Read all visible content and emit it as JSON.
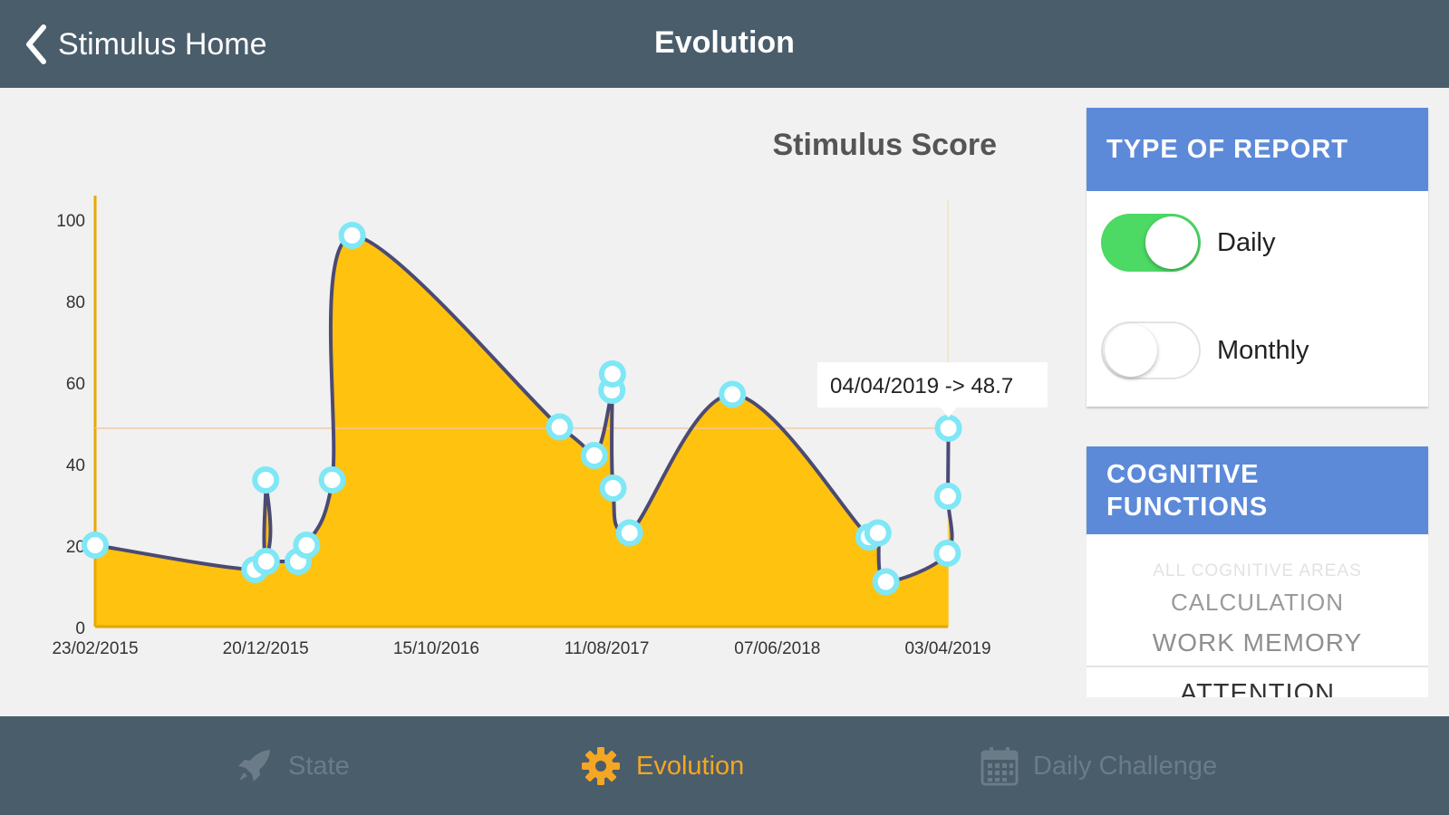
{
  "header": {
    "back_label": "Stimulus Home",
    "title": "Evolution"
  },
  "report_panel": {
    "title": "TYPE OF REPORT",
    "options": [
      {
        "label": "Daily",
        "on": true
      },
      {
        "label": "Monthly",
        "on": false
      }
    ]
  },
  "cognitive_panel": {
    "title_line1": "COGNITIVE",
    "title_line2": "FUNCTIONS",
    "options": [
      "ALL COGNITIVE AREAS",
      "CALCULATION",
      "WORK MEMORY",
      "ATTENTION"
    ],
    "selected": "ATTENTION"
  },
  "tabs": [
    {
      "label": "State",
      "icon": "rocket-icon",
      "active": false
    },
    {
      "label": "Evolution",
      "icon": "gear-icon",
      "active": true
    },
    {
      "label": "Daily Challenge",
      "icon": "calendar-icon",
      "active": false
    }
  ],
  "colors": {
    "header_bg": "#4a5d6b",
    "panel_header": "#5d8ad8",
    "toggle_on": "#4cd964",
    "area_fill": "#ffc20e",
    "line": "#4b4a74",
    "point": "#7fe7f5",
    "active_tab": "#f5a623"
  },
  "chart_data": {
    "type": "area",
    "title": "Stimulus Score",
    "xlabel": "",
    "ylabel": "",
    "ylim": [
      0,
      100
    ],
    "yticks": [
      "0",
      "20",
      "40",
      "60",
      "80",
      "100"
    ],
    "xticks": [
      "23/02/2015",
      "20/12/2015",
      "15/10/2016",
      "11/08/2017",
      "07/06/2018",
      "03/04/2019"
    ],
    "tooltip": "04/04/2019 -> 48.7",
    "reference_line": 48.7,
    "series": [
      {
        "values": [
          {
            "x": "2015-02-23",
            "y": 20
          },
          {
            "x": "2015-12-01",
            "y": 14
          },
          {
            "x": "2015-12-20",
            "y": 36
          },
          {
            "x": "2015-12-21",
            "y": 16
          },
          {
            "x": "2016-02-15",
            "y": 16
          },
          {
            "x": "2016-03-01",
            "y": 20
          },
          {
            "x": "2016-04-15",
            "y": 36
          },
          {
            "x": "2016-05-20",
            "y": 96
          },
          {
            "x": "2017-05-20",
            "y": 49
          },
          {
            "x": "2017-07-20",
            "y": 42
          },
          {
            "x": "2017-08-20",
            "y": 58
          },
          {
            "x": "2017-08-21",
            "y": 62
          },
          {
            "x": "2017-08-22",
            "y": 34
          },
          {
            "x": "2017-09-20",
            "y": 23
          },
          {
            "x": "2018-03-20",
            "y": 57
          },
          {
            "x": "2018-11-15",
            "y": 22
          },
          {
            "x": "2018-12-01",
            "y": 23
          },
          {
            "x": "2018-12-15",
            "y": 11
          },
          {
            "x": "2019-04-02",
            "y": 18
          },
          {
            "x": "2019-04-03",
            "y": 32
          },
          {
            "x": "2019-04-04",
            "y": 48.7
          }
        ]
      }
    ]
  }
}
